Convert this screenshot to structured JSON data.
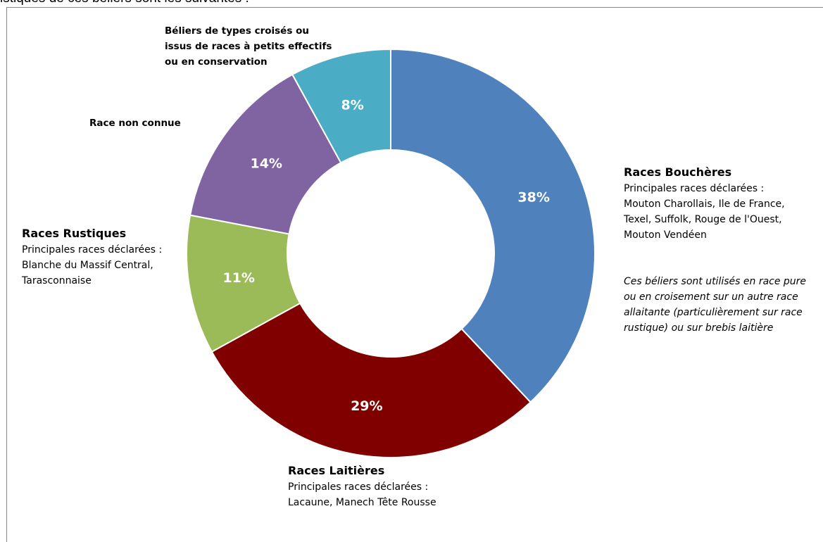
{
  "header_text": "istiques de ces béliers sont les suivantes :",
  "chart_data": {
    "type": "pie",
    "donut": true,
    "categories": [
      "Races Bouchères",
      "Races Laitières",
      "Races Rustiques",
      "Race non connue",
      "Béliers de types croisés ou issus de races à petits effectifs ou en conservation"
    ],
    "values": [
      38,
      29,
      11,
      14,
      8
    ],
    "value_labels": [
      "38%",
      "29%",
      "11%",
      "14%",
      "8%"
    ],
    "colors": [
      "#4f81bd",
      "#800000",
      "#9bbb59",
      "#8064a2",
      "#4bacc6"
    ]
  },
  "labels": {
    "bouchere": {
      "title": "Races Bouchères",
      "line1": "Principales races déclarées :",
      "line2": "Mouton Charollais, Ile de France,",
      "line3": "Texel, Suffolk, Rouge de l'Ouest,",
      "line4": "Mouton Vendéen"
    },
    "bouchere_note": {
      "line1": "Ces béliers sont utilisés en race pure",
      "line2": "ou en croisement sur un autre race",
      "line3": "allaitante (particulièrement sur race",
      "line4": "rustique) ou sur brebis laitière"
    },
    "laitiere": {
      "title": "Races Laitières",
      "line1": "Principales races déclarées :",
      "line2": "Lacaune, Manech Tête Rousse"
    },
    "rustique": {
      "title": "Races Rustiques",
      "line1": "Principales races déclarées :",
      "line2": "Blanche du Massif Central,",
      "line3": "Tarasconnaise"
    },
    "inconnue": {
      "title": "Race non connue"
    },
    "croises": {
      "line1": "Béliers de types croisés ou",
      "line2": "issus de races à petits effectifs",
      "line3": "ou en conservation"
    }
  }
}
